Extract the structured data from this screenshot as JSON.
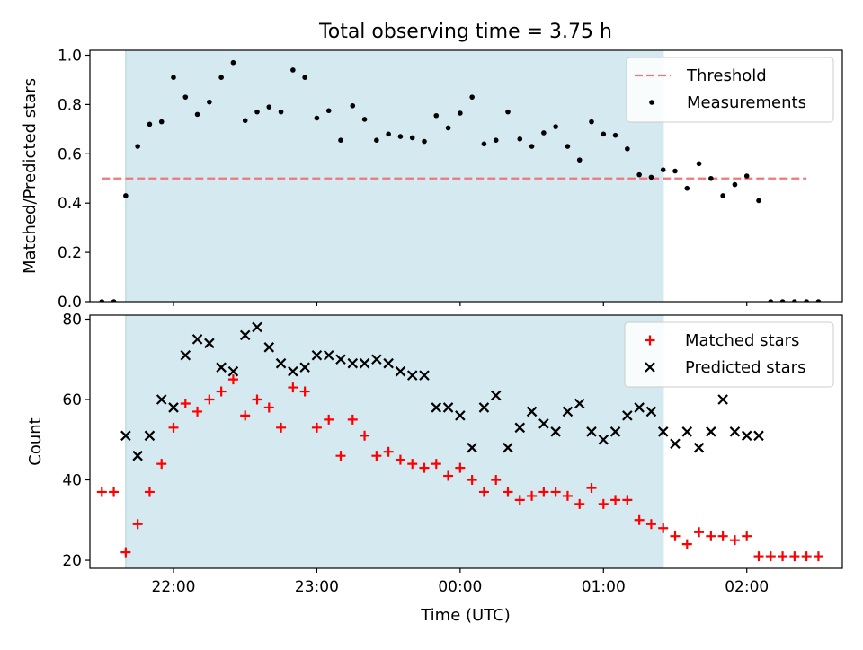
{
  "chart_data": [
    {
      "type": "scatter",
      "title": "Total observing time = 3.75 h",
      "xlabel": "",
      "ylabel": "Matched/Predicted stars",
      "x_unit": "time (UTC)",
      "xlim": [
        "21:25",
        "02:40"
      ],
      "ylim": [
        0,
        1.02
      ],
      "yticks": [
        "0.0",
        "0.2",
        "0.4",
        "0.6",
        "0.8",
        "1.0"
      ],
      "shaded_span": [
        "21:40",
        "01:25"
      ],
      "shade_color": "#d4eaf0",
      "legend_position": "top-right",
      "threshold": {
        "name": "Threshold",
        "value": 0.5,
        "from": "21:30",
        "to": "02:25",
        "color": "#f07777",
        "style": "dashed"
      },
      "series": [
        {
          "name": "Measurements",
          "color": "#000000",
          "marker": "dot",
          "points": [
            [
              "21:30",
              0.0
            ],
            [
              "21:35",
              0.0
            ],
            [
              "21:40",
              0.43
            ],
            [
              "21:45",
              0.63
            ],
            [
              "21:50",
              0.72
            ],
            [
              "21:55",
              0.73
            ],
            [
              "22:00",
              0.91
            ],
            [
              "22:05",
              0.83
            ],
            [
              "22:10",
              0.76
            ],
            [
              "22:15",
              0.81
            ],
            [
              "22:20",
              0.91
            ],
            [
              "22:25",
              0.97
            ],
            [
              "22:30",
              0.735
            ],
            [
              "22:35",
              0.77
            ],
            [
              "22:40",
              0.79
            ],
            [
              "22:45",
              0.77
            ],
            [
              "22:50",
              0.94
            ],
            [
              "22:55",
              0.91
            ],
            [
              "23:00",
              0.745
            ],
            [
              "23:05",
              0.775
            ],
            [
              "23:10",
              0.655
            ],
            [
              "23:15",
              0.795
            ],
            [
              "23:20",
              0.74
            ],
            [
              "23:25",
              0.655
            ],
            [
              "23:30",
              0.68
            ],
            [
              "23:35",
              0.67
            ],
            [
              "23:40",
              0.665
            ],
            [
              "23:45",
              0.65
            ],
            [
              "23:50",
              0.755
            ],
            [
              "23:55",
              0.705
            ],
            [
              "00:00",
              0.765
            ],
            [
              "00:05",
              0.83
            ],
            [
              "00:10",
              0.64
            ],
            [
              "00:15",
              0.655
            ],
            [
              "00:20",
              0.77
            ],
            [
              "00:25",
              0.66
            ],
            [
              "00:30",
              0.63
            ],
            [
              "00:35",
              0.685
            ],
            [
              "00:40",
              0.71
            ],
            [
              "00:45",
              0.63
            ],
            [
              "00:50",
              0.575
            ],
            [
              "00:55",
              0.73
            ],
            [
              "01:00",
              0.68
            ],
            [
              "01:05",
              0.675
            ],
            [
              "01:10",
              0.62
            ],
            [
              "01:15",
              0.515
            ],
            [
              "01:20",
              0.505
            ],
            [
              "01:25",
              0.535
            ],
            [
              "01:30",
              0.53
            ],
            [
              "01:35",
              0.46
            ],
            [
              "01:40",
              0.56
            ],
            [
              "01:45",
              0.5
            ],
            [
              "01:50",
              0.43
            ],
            [
              "01:55",
              0.475
            ],
            [
              "02:00",
              0.51
            ],
            [
              "02:05",
              0.41
            ],
            [
              "02:10",
              0.0
            ],
            [
              "02:15",
              0.0
            ],
            [
              "02:20",
              0.0
            ],
            [
              "02:25",
              0.0
            ],
            [
              "02:30",
              0.0
            ]
          ]
        }
      ]
    },
    {
      "type": "scatter",
      "title": "",
      "xlabel": "Time (UTC)",
      "ylabel": "Count",
      "xlim": [
        "21:25",
        "02:40"
      ],
      "ylim": [
        18,
        81
      ],
      "xticks": [
        "22:00",
        "23:00",
        "00:00",
        "01:00",
        "02:00"
      ],
      "yticks": [
        "20",
        "40",
        "60",
        "80"
      ],
      "shaded_span": [
        "21:40",
        "01:25"
      ],
      "shade_color": "#d4eaf0",
      "legend_position": "top-right",
      "series": [
        {
          "name": "Matched stars",
          "color": "#ff0000",
          "marker": "plus",
          "points": [
            [
              "21:30",
              37
            ],
            [
              "21:35",
              37
            ],
            [
              "21:40",
              22
            ],
            [
              "21:45",
              29
            ],
            [
              "21:50",
              37
            ],
            [
              "21:55",
              44
            ],
            [
              "22:00",
              53
            ],
            [
              "22:05",
              59
            ],
            [
              "22:10",
              57
            ],
            [
              "22:15",
              60
            ],
            [
              "22:20",
              62
            ],
            [
              "22:25",
              65
            ],
            [
              "22:30",
              56
            ],
            [
              "22:35",
              60
            ],
            [
              "22:40",
              58
            ],
            [
              "22:45",
              53
            ],
            [
              "22:50",
              63
            ],
            [
              "22:55",
              62
            ],
            [
              "23:00",
              53
            ],
            [
              "23:05",
              55
            ],
            [
              "23:10",
              46
            ],
            [
              "23:15",
              55
            ],
            [
              "23:20",
              51
            ],
            [
              "23:25",
              46
            ],
            [
              "23:30",
              47
            ],
            [
              "23:35",
              45
            ],
            [
              "23:40",
              44
            ],
            [
              "23:45",
              43
            ],
            [
              "23:50",
              44
            ],
            [
              "23:55",
              41
            ],
            [
              "00:00",
              43
            ],
            [
              "00:05",
              40
            ],
            [
              "00:10",
              37
            ],
            [
              "00:15",
              40
            ],
            [
              "00:20",
              37
            ],
            [
              "00:25",
              35
            ],
            [
              "00:30",
              36
            ],
            [
              "00:35",
              37
            ],
            [
              "00:40",
              37
            ],
            [
              "00:45",
              36
            ],
            [
              "00:50",
              34
            ],
            [
              "00:55",
              38
            ],
            [
              "01:00",
              34
            ],
            [
              "01:05",
              35
            ],
            [
              "01:10",
              35
            ],
            [
              "01:15",
              30
            ],
            [
              "01:20",
              29
            ],
            [
              "01:25",
              28
            ],
            [
              "01:30",
              26
            ],
            [
              "01:35",
              24
            ],
            [
              "01:40",
              27
            ],
            [
              "01:45",
              26
            ],
            [
              "01:50",
              26
            ],
            [
              "01:55",
              25
            ],
            [
              "02:00",
              26
            ],
            [
              "02:05",
              21
            ],
            [
              "02:10",
              21
            ],
            [
              "02:15",
              21
            ],
            [
              "02:20",
              21
            ],
            [
              "02:25",
              21
            ],
            [
              "02:30",
              21
            ]
          ]
        },
        {
          "name": "Predicted stars",
          "color": "#000000",
          "marker": "cross",
          "points": [
            [
              "21:40",
              51
            ],
            [
              "21:45",
              46
            ],
            [
              "21:50",
              51
            ],
            [
              "21:55",
              60
            ],
            [
              "22:00",
              58
            ],
            [
              "22:05",
              71
            ],
            [
              "22:10",
              75
            ],
            [
              "22:15",
              74
            ],
            [
              "22:20",
              68
            ],
            [
              "22:25",
              67
            ],
            [
              "22:30",
              76
            ],
            [
              "22:35",
              78
            ],
            [
              "22:40",
              73
            ],
            [
              "22:45",
              69
            ],
            [
              "22:50",
              67
            ],
            [
              "22:55",
              68
            ],
            [
              "23:00",
              71
            ],
            [
              "23:05",
              71
            ],
            [
              "23:10",
              70
            ],
            [
              "23:15",
              69
            ],
            [
              "23:20",
              69
            ],
            [
              "23:25",
              70
            ],
            [
              "23:30",
              69
            ],
            [
              "23:35",
              67
            ],
            [
              "23:40",
              66
            ],
            [
              "23:45",
              66
            ],
            [
              "23:50",
              58
            ],
            [
              "23:55",
              58
            ],
            [
              "00:00",
              56
            ],
            [
              "00:05",
              48
            ],
            [
              "00:10",
              58
            ],
            [
              "00:15",
              61
            ],
            [
              "00:20",
              48
            ],
            [
              "00:25",
              53
            ],
            [
              "00:30",
              57
            ],
            [
              "00:35",
              54
            ],
            [
              "00:40",
              52
            ],
            [
              "00:45",
              57
            ],
            [
              "00:50",
              59
            ],
            [
              "00:55",
              52
            ],
            [
              "01:00",
              50
            ],
            [
              "01:05",
              52
            ],
            [
              "01:10",
              56
            ],
            [
              "01:15",
              58
            ],
            [
              "01:20",
              57
            ],
            [
              "01:25",
              52
            ],
            [
              "01:30",
              49
            ],
            [
              "01:35",
              52
            ],
            [
              "01:40",
              48
            ],
            [
              "01:45",
              52
            ],
            [
              "01:50",
              60
            ],
            [
              "01:55",
              52
            ],
            [
              "02:00",
              51
            ],
            [
              "02:05",
              51
            ]
          ]
        }
      ]
    }
  ]
}
